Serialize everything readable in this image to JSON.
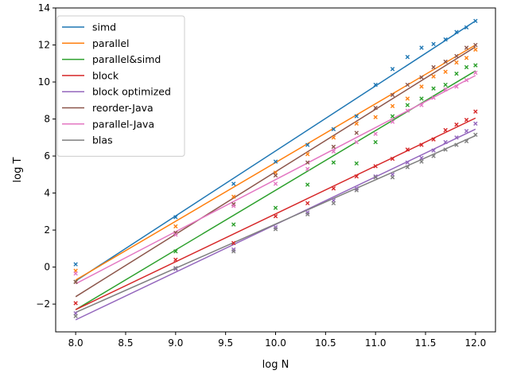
{
  "chart_data": {
    "type": "scatter",
    "xlabel": "log N",
    "ylabel": "log T",
    "xlim": [
      7.8,
      12.2
    ],
    "ylim": [
      -3.5,
      14
    ],
    "xticks": [
      8.0,
      8.5,
      9.0,
      9.5,
      10.0,
      10.5,
      11.0,
      11.5,
      12.0
    ],
    "xtick_labels": [
      "8.0",
      "8.5",
      "9.0",
      "9.5",
      "10.0",
      "10.5",
      "11.0",
      "11.5",
      "12.0"
    ],
    "yticks": [
      -2,
      0,
      2,
      4,
      6,
      8,
      10,
      12,
      14
    ],
    "ytick_labels": [
      "−2",
      "0",
      "2",
      "4",
      "6",
      "8",
      "10",
      "12",
      "14"
    ],
    "grid": false,
    "legend_position": "upper-left",
    "x": [
      8.0,
      9.0,
      9.58,
      10.0,
      10.32,
      10.58,
      10.81,
      11.0,
      11.17,
      11.32,
      11.46,
      11.58,
      11.7,
      11.81,
      11.91,
      12.0
    ],
    "series": [
      {
        "name": "simd",
        "color": "#1f77b4",
        "points": [
          0.15,
          2.7,
          4.5,
          5.7,
          6.6,
          7.45,
          8.15,
          9.85,
          10.7,
          11.35,
          11.85,
          12.05,
          12.3,
          12.7,
          12.95,
          13.3
        ],
        "fit": [
          -0.75,
          13.3
        ]
      },
      {
        "name": "parallel",
        "color": "#ff7f0e",
        "points": [
          -0.2,
          2.2,
          3.8,
          5.1,
          6.1,
          7.0,
          7.75,
          8.1,
          8.7,
          9.1,
          9.75,
          10.3,
          10.55,
          11.05,
          11.3,
          11.75
        ],
        "fit": [
          -0.7,
          12.0
        ]
      },
      {
        "name": "parallel&simd",
        "color": "#2ca02c",
        "points": [
          -0.8,
          0.85,
          2.3,
          3.2,
          4.45,
          5.65,
          5.6,
          6.75,
          8.15,
          8.75,
          9.1,
          9.65,
          9.85,
          10.45,
          10.8,
          10.9
        ],
        "fit": [
          -2.3,
          10.6
        ]
      },
      {
        "name": "block",
        "color": "#d62728",
        "points": [
          -1.95,
          0.4,
          1.3,
          2.75,
          3.45,
          4.25,
          4.9,
          5.45,
          5.85,
          6.35,
          6.6,
          6.9,
          7.4,
          7.7,
          7.95,
          8.4
        ],
        "fit": [
          -2.3,
          8.05
        ]
      },
      {
        "name": "block optimized",
        "color": "#9467bd",
        "points": [
          -2.5,
          -0.1,
          0.95,
          2.15,
          2.95,
          3.6,
          4.25,
          4.9,
          5.0,
          5.65,
          5.9,
          6.3,
          6.75,
          7.0,
          7.35,
          7.75
        ],
        "fit": [
          -2.85,
          7.45
        ]
      },
      {
        "name": "reorder-Java",
        "color": "#8c564b",
        "points": [
          -0.8,
          1.85,
          3.4,
          4.95,
          5.65,
          6.5,
          7.25,
          8.6,
          9.3,
          9.85,
          10.25,
          10.8,
          11.1,
          11.4,
          11.85,
          12.0
        ],
        "fit": [
          -1.6,
          11.9
        ]
      },
      {
        "name": "parallel-Java",
        "color": "#e377c2",
        "points": [
          -0.35,
          1.75,
          3.3,
          4.5,
          5.3,
          6.25,
          6.75,
          7.2,
          7.85,
          8.45,
          8.75,
          9.15,
          9.6,
          9.75,
          10.1,
          10.5
        ],
        "fit": [
          -0.9,
          10.35
        ]
      },
      {
        "name": "blas",
        "color": "#7f7f7f",
        "points": [
          -2.65,
          -0.05,
          0.85,
          2.05,
          2.85,
          3.45,
          4.15,
          4.85,
          4.85,
          5.4,
          5.7,
          6.0,
          6.35,
          6.6,
          6.8,
          7.15
        ],
        "fit": [
          -2.45,
          7.1
        ]
      }
    ]
  }
}
